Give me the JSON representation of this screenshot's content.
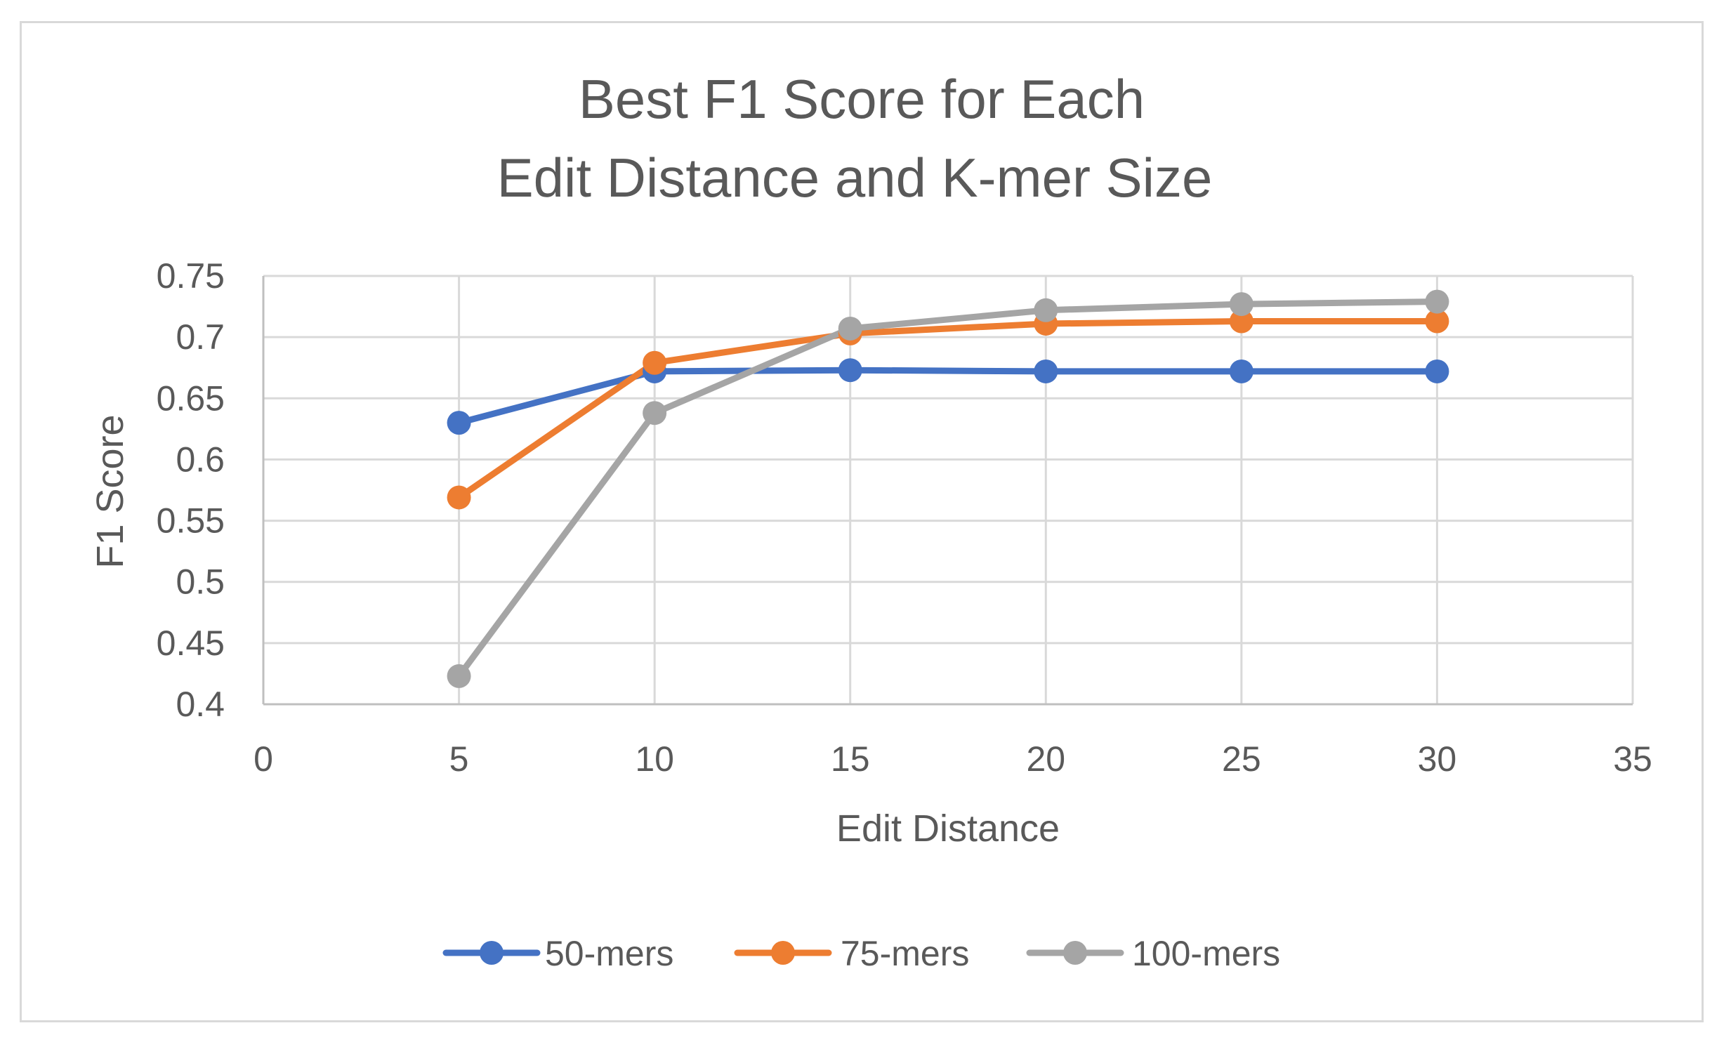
{
  "chart_data": {
    "type": "line",
    "title": [
      "Best F1 Score for Each",
      "Edit Distance and K-mer Size"
    ],
    "xlabel": "Edit Distance",
    "ylabel": "F1 Score",
    "xlim": [
      0,
      35
    ],
    "ylim": [
      0.4,
      0.75
    ],
    "xticks": [
      0,
      5,
      10,
      15,
      20,
      25,
      30,
      35
    ],
    "xtick_labels": [
      "0",
      "5",
      "10",
      "15",
      "20",
      "25",
      "30",
      "35"
    ],
    "yticks": [
      0.4,
      0.45,
      0.5,
      0.55,
      0.6,
      0.65,
      0.7,
      0.75
    ],
    "ytick_labels": [
      "0.4",
      "0.45",
      "0.5",
      "0.55",
      "0.6",
      "0.65",
      "0.7",
      "0.75"
    ],
    "grid": true,
    "legend_position": "bottom",
    "x": [
      5,
      10,
      15,
      20,
      25,
      30
    ],
    "series": [
      {
        "name": "50-mers",
        "color": "#4472c4",
        "values": [
          0.63,
          0.672,
          0.673,
          0.672,
          0.672,
          0.672
        ]
      },
      {
        "name": "75-mers",
        "color": "#ed7d31",
        "values": [
          0.569,
          0.679,
          0.703,
          0.711,
          0.713,
          0.713
        ]
      },
      {
        "name": "100-mers",
        "color": "#a5a5a5",
        "values": [
          0.423,
          0.638,
          0.707,
          0.722,
          0.727,
          0.729
        ]
      }
    ]
  }
}
